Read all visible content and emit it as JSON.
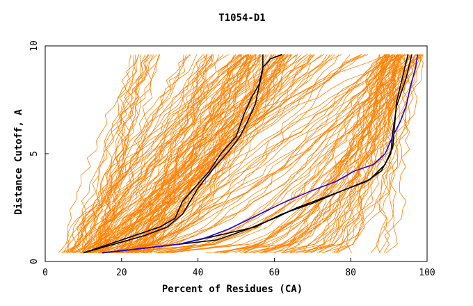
{
  "chart_data": {
    "type": "line",
    "title": "T1054-D1",
    "xlabel": "Percent of Residues (CA)",
    "ylabel": "Distance Cutoff, A",
    "xlim": [
      0,
      100
    ],
    "ylim": [
      0,
      10
    ],
    "x_ticks": [
      0,
      20,
      40,
      60,
      80,
      100
    ],
    "y_ticks": [
      0,
      5,
      10
    ],
    "grid": false,
    "legend": "none",
    "colors": {
      "background_models": "#ff8000",
      "highlight_black": "#000000",
      "highlight_blue": "#2200dd"
    },
    "y_levels": [
      0.4,
      0.8,
      1.2,
      1.6,
      2.0,
      2.4,
      2.8,
      3.2,
      3.6,
      4.0,
      4.4,
      4.8,
      5.2,
      5.6,
      6.0,
      6.4,
      6.8,
      7.2,
      7.6,
      8.0,
      8.4,
      8.8,
      9.2,
      9.6
    ],
    "highlight_series": [
      {
        "color": "black",
        "x": [
          10,
          18,
          26,
          32,
          36,
          40,
          44,
          48,
          51,
          53,
          55,
          56,
          57,
          57
        ],
        "y": [
          0.4,
          0.8,
          1.2,
          1.6,
          2.2,
          3.4,
          4.3,
          5.1,
          5.8,
          6.5,
          7.3,
          8.1,
          8.9,
          9.6
        ]
      },
      {
        "color": "black",
        "x": [
          10,
          20,
          30,
          34,
          36,
          40,
          43,
          46,
          50,
          52,
          54,
          56,
          57,
          59,
          62
        ],
        "y": [
          0.4,
          1.0,
          1.6,
          2.0,
          2.8,
          3.6,
          4.2,
          5.0,
          5.8,
          6.8,
          7.6,
          8.2,
          9.0,
          9.4,
          9.6
        ]
      },
      {
        "color": "black",
        "x": [
          15,
          25,
          35,
          45,
          55,
          62,
          70,
          78,
          85,
          89,
          91,
          91.5,
          92,
          93.5,
          95
        ],
        "y": [
          0.4,
          0.6,
          0.8,
          1.2,
          1.6,
          2.2,
          2.7,
          3.3,
          3.8,
          4.5,
          5.3,
          6.3,
          7.4,
          8.5,
          9.6
        ]
      },
      {
        "color": "black",
        "x": [
          15,
          30,
          45,
          53,
          60,
          66,
          72,
          78,
          84,
          88,
          90.5,
          91,
          92,
          94.5,
          96
        ],
        "y": [
          0.4,
          0.7,
          1.0,
          1.5,
          2.0,
          2.5,
          2.9,
          3.3,
          3.7,
          4.2,
          5.0,
          6.0,
          7.2,
          8.5,
          9.6
        ]
      },
      {
        "color": "blue",
        "x": [
          15,
          25,
          35,
          42,
          48,
          55,
          62,
          70,
          76,
          81,
          86,
          89,
          91,
          93,
          94.5,
          95.5,
          97,
          97.5
        ],
        "y": [
          0.4,
          0.6,
          0.8,
          1.1,
          1.5,
          2.1,
          2.7,
          3.3,
          3.7,
          4.2,
          4.5,
          5.0,
          5.8,
          6.5,
          7.2,
          8.0,
          9.0,
          9.6
        ]
      }
    ]
  }
}
